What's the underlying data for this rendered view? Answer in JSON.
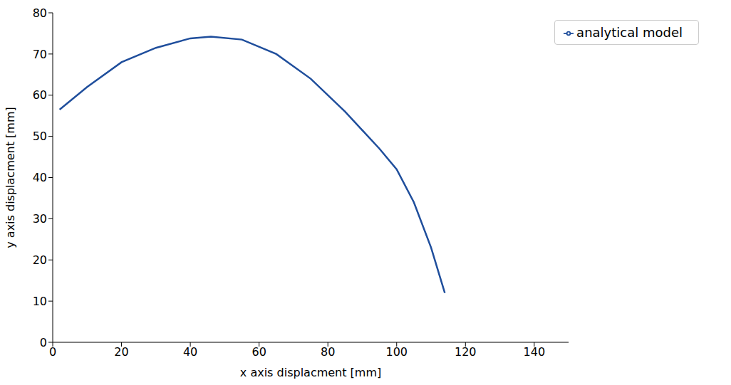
{
  "chart_data": {
    "type": "line",
    "x_label": "x axis displacment [mm]",
    "y_label": "y axis displacment [mm]",
    "xlim": [
      0,
      150
    ],
    "xticks": [
      0,
      20,
      40,
      60,
      80,
      100,
      120,
      140
    ],
    "ylim": [
      0,
      80
    ],
    "yticks": [
      0,
      10,
      20,
      30,
      40,
      50,
      60,
      70,
      80
    ],
    "grid": false,
    "legend": "upper right",
    "series": [
      {
        "name": "analytical model",
        "color": "#1f4e9c",
        "x": [
          2,
          10,
          20,
          30,
          40,
          46,
          55,
          65,
          75,
          85,
          95,
          100,
          105,
          110,
          114
        ],
        "values": [
          56.5,
          62,
          68,
          71.5,
          73.8,
          74.2,
          73.5,
          70,
          64,
          56,
          47,
          42,
          34,
          23,
          12
        ]
      }
    ]
  }
}
